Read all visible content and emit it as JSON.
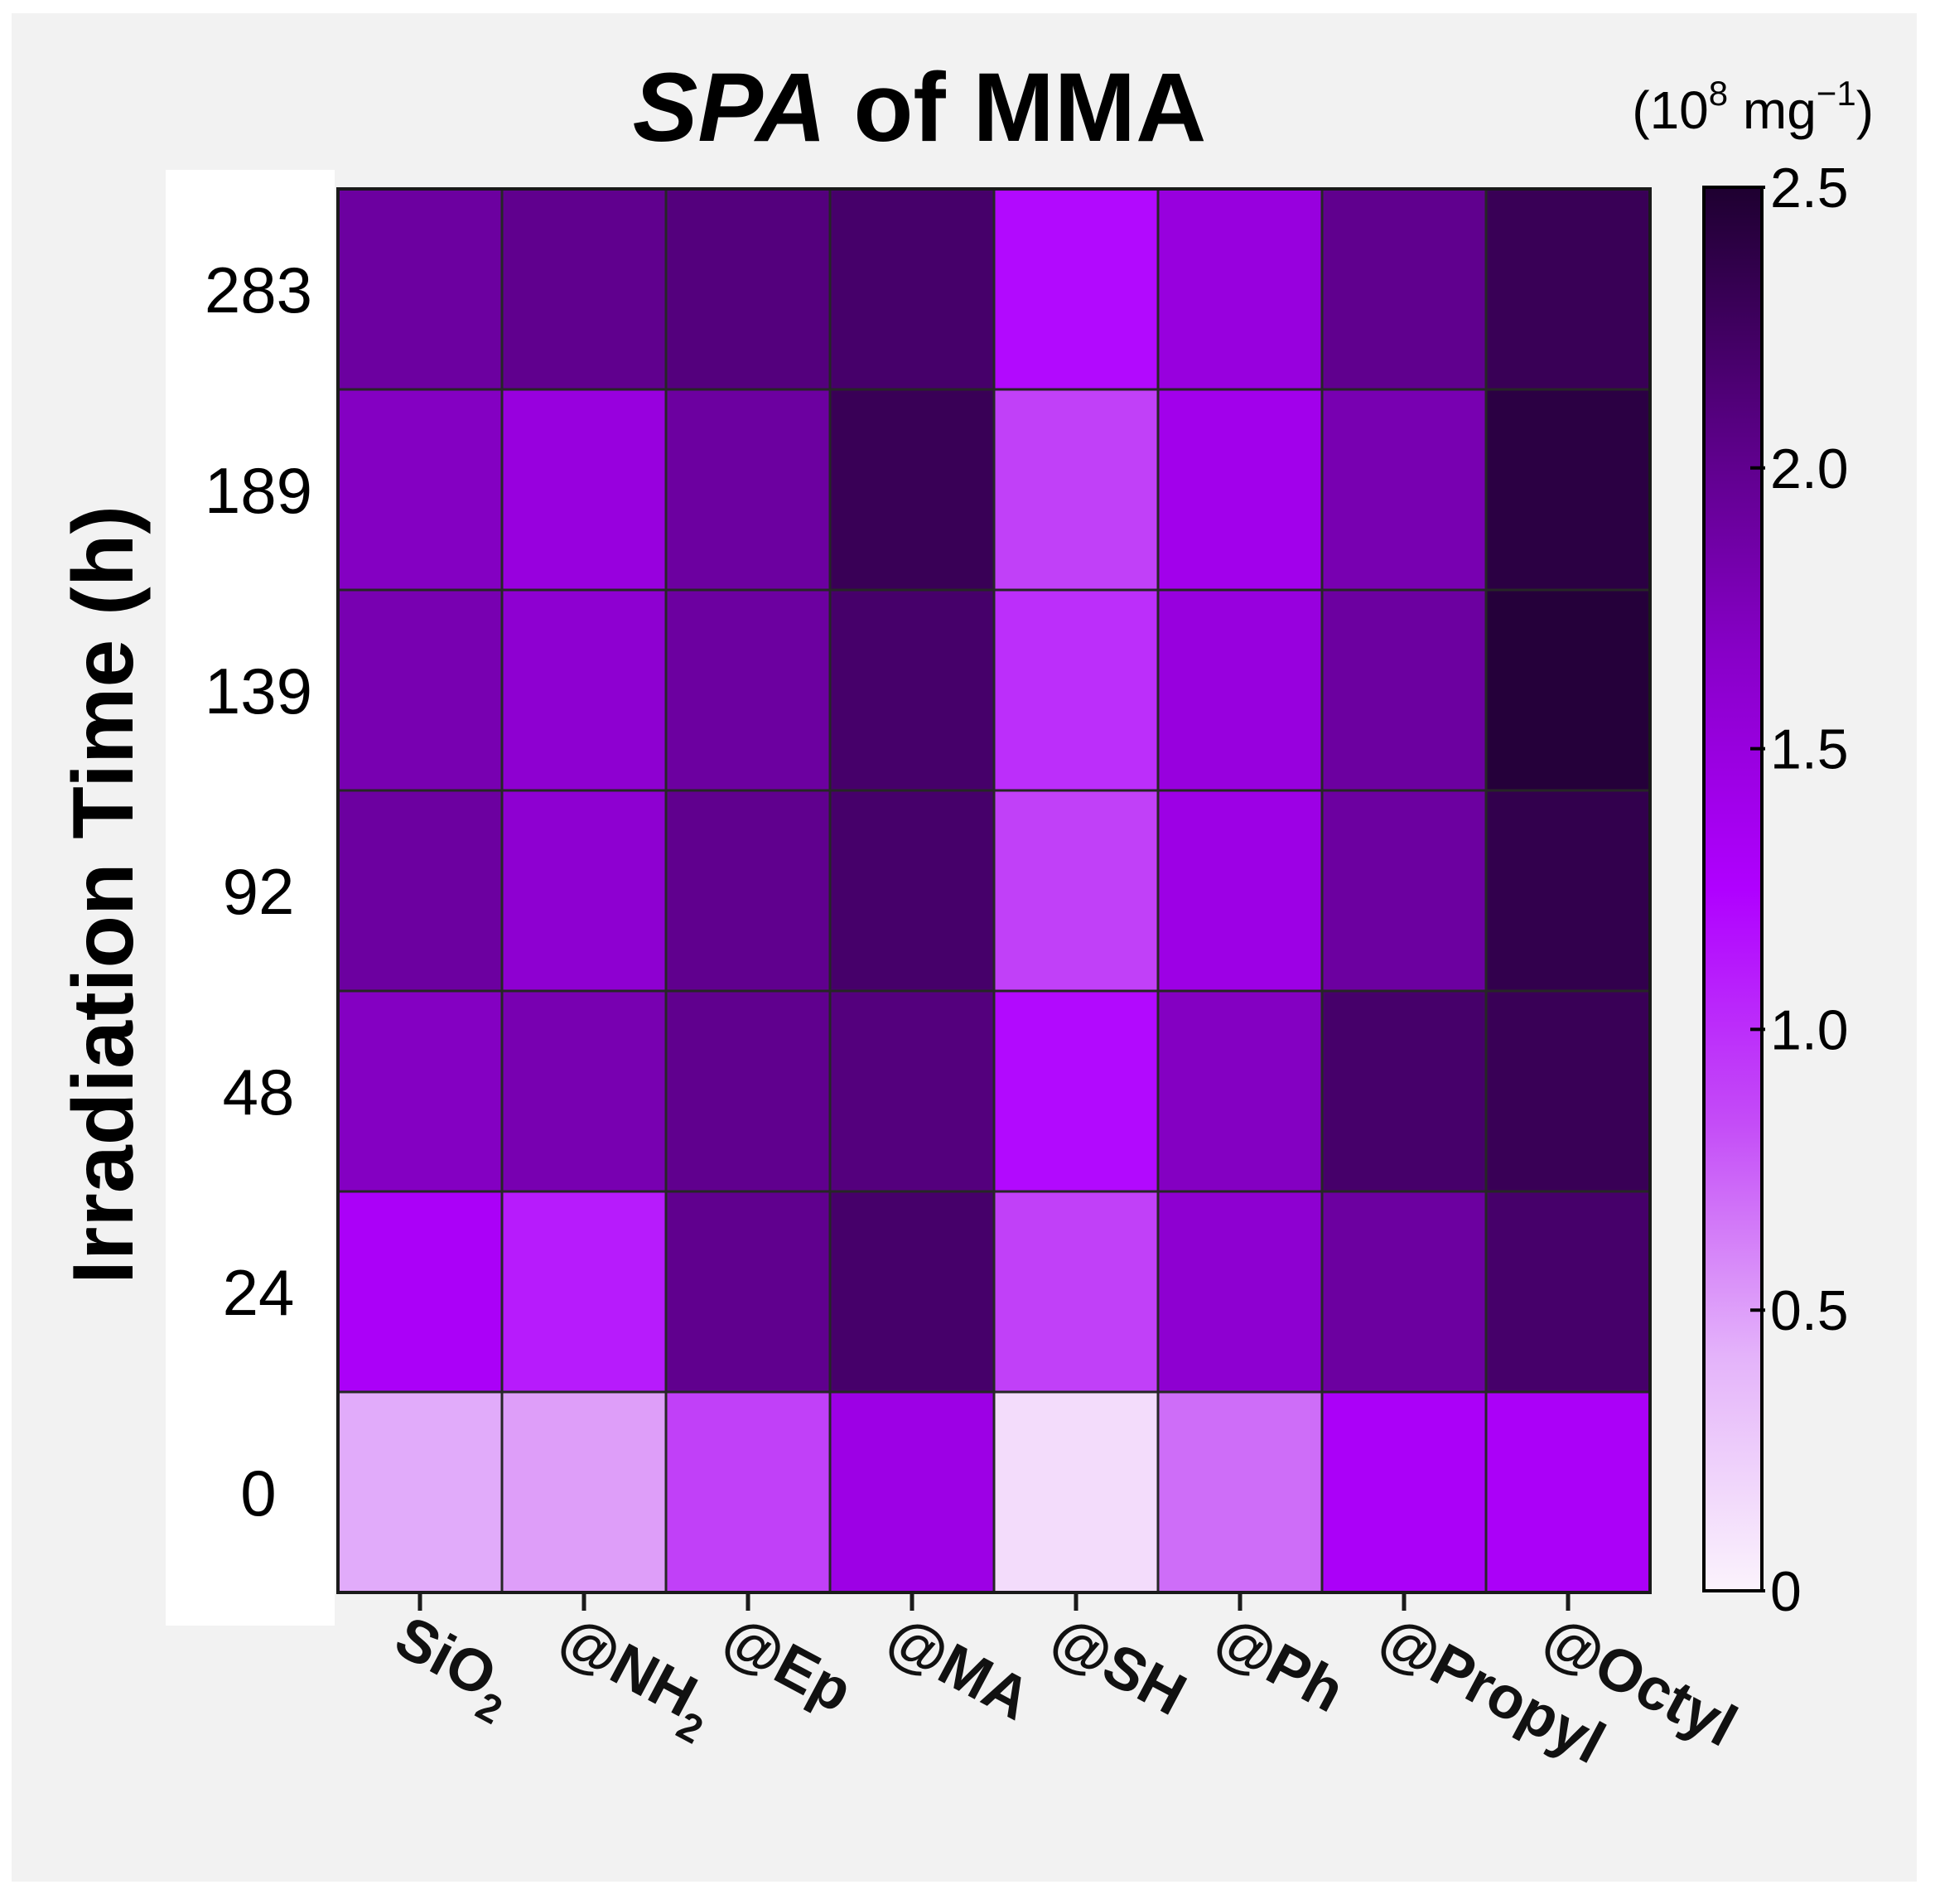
{
  "chart_data": {
    "type": "heatmap",
    "title_italic": "SPA",
    "title_rest": " of MMA",
    "ylabel": "Irradiation Time (h)",
    "colorbar_unit_open": "(10",
    "colorbar_unit_exp": "8",
    "colorbar_unit_mid": " mg",
    "colorbar_unit_exp2": "−1",
    "colorbar_unit_close": ")",
    "x_categories": [
      {
        "base": "SiO",
        "sub": "2"
      },
      {
        "base": "@NH",
        "sub": "2"
      },
      {
        "base": "@Ep",
        "sub": ""
      },
      {
        "base": "@MA",
        "sub": ""
      },
      {
        "base": "@SH",
        "sub": ""
      },
      {
        "base": "@Ph",
        "sub": ""
      },
      {
        "base": "@Propyl",
        "sub": ""
      },
      {
        "base": "@Octyl",
        "sub": ""
      }
    ],
    "y_categories": [
      "283",
      "189",
      "139",
      "92",
      "48",
      "24",
      "0"
    ],
    "values": [
      [
        1.9,
        2.0,
        2.1,
        2.2,
        1.2,
        1.5,
        2.0,
        2.3
      ],
      [
        1.7,
        1.5,
        1.9,
        2.3,
        0.9,
        1.4,
        1.8,
        2.4
      ],
      [
        1.8,
        1.6,
        1.9,
        2.2,
        1.0,
        1.5,
        1.9,
        2.45
      ],
      [
        1.9,
        1.6,
        2.0,
        2.2,
        0.9,
        1.45,
        1.9,
        2.35
      ],
      [
        1.7,
        1.8,
        2.0,
        2.1,
        1.2,
        1.7,
        2.2,
        2.3
      ],
      [
        1.3,
        1.1,
        2.0,
        2.2,
        0.9,
        1.6,
        1.9,
        2.2
      ],
      [
        0.45,
        0.5,
        0.9,
        1.45,
        0.15,
        0.7,
        1.3,
        1.3
      ]
    ],
    "colorbar_ticks": [
      "0",
      "0.5",
      "1.0",
      "1.5",
      "2.0",
      "2.5"
    ],
    "colorbar_range": [
      0,
      2.5
    ],
    "colormap_stops": [
      "#fbf3fc",
      "#e4b3fa",
      "#c44cf7",
      "#b000ff",
      "#8800c8",
      "#560080",
      "#1e0030"
    ],
    "grid": true
  }
}
